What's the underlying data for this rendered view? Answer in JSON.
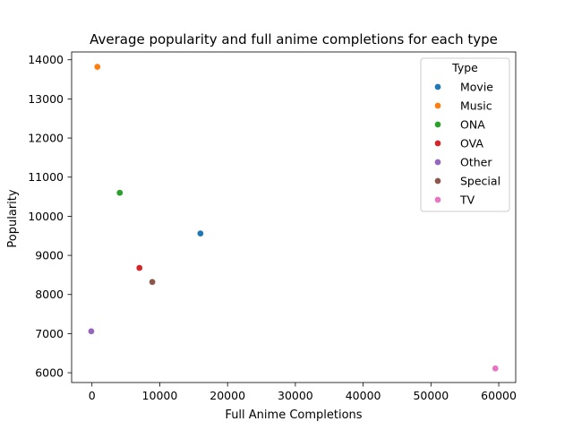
{
  "chart_data": {
    "type": "scatter",
    "title": "Average popularity and full anime completions for each type",
    "xlabel": "Full Anime Completions",
    "ylabel": "Popularity",
    "xlim": [
      -3000,
      62500
    ],
    "ylim": [
      5750,
      14200
    ],
    "xticks": [
      0,
      10000,
      20000,
      30000,
      40000,
      50000,
      60000
    ],
    "xtick_labels": [
      "0",
      "10000",
      "20000",
      "30000",
      "40000",
      "50000",
      "60000"
    ],
    "yticks": [
      6000,
      7000,
      8000,
      9000,
      10000,
      11000,
      12000,
      13000,
      14000
    ],
    "ytick_labels": [
      "6000",
      "7000",
      "8000",
      "9000",
      "10000",
      "11000",
      "12000",
      "13000",
      "14000"
    ],
    "grid": false,
    "legend_title": "Type",
    "legend_position": "top-right",
    "series": [
      {
        "name": "Movie",
        "color": "#1f77b4",
        "x": 16000,
        "y": 9560
      },
      {
        "name": "Music",
        "color": "#ff7f0e",
        "x": 800,
        "y": 13820
      },
      {
        "name": "ONA",
        "color": "#2ca02c",
        "x": 4100,
        "y": 10600
      },
      {
        "name": "OVA",
        "color": "#d62728",
        "x": 7000,
        "y": 8680
      },
      {
        "name": "Other",
        "color": "#9467bd",
        "x": -100,
        "y": 7060
      },
      {
        "name": "Special",
        "color": "#8c564b",
        "x": 8900,
        "y": 8320
      },
      {
        "name": "TV",
        "color": "#e377c2",
        "x": 59500,
        "y": 6110
      }
    ]
  }
}
